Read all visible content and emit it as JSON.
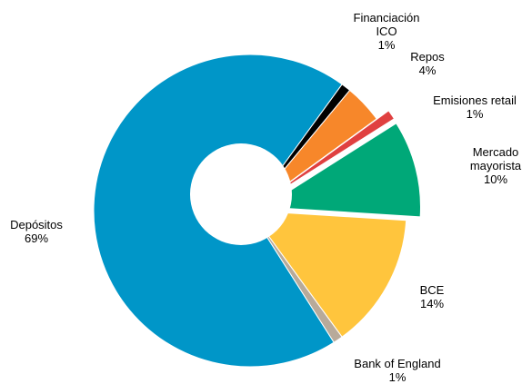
{
  "chart_data": {
    "type": "donut",
    "categories": [
      "Financiación ICO",
      "Repos",
      "Emisiones retail",
      "Mercado mayorista",
      "BCE",
      "Bank of England",
      "Depósitos"
    ],
    "values": [
      1,
      4,
      1,
      10,
      14,
      1,
      69
    ],
    "value_labels": [
      "1%",
      "4%",
      "1%",
      "10%",
      "14%",
      "1%",
      "69%"
    ],
    "colors": [
      "#000000",
      "#f7872a",
      "#e04040",
      "#00a878",
      "#ffc53d",
      "#b8aa9a",
      "#0096c8"
    ],
    "exploded": [
      false,
      false,
      true,
      true,
      false,
      false,
      false
    ]
  }
}
